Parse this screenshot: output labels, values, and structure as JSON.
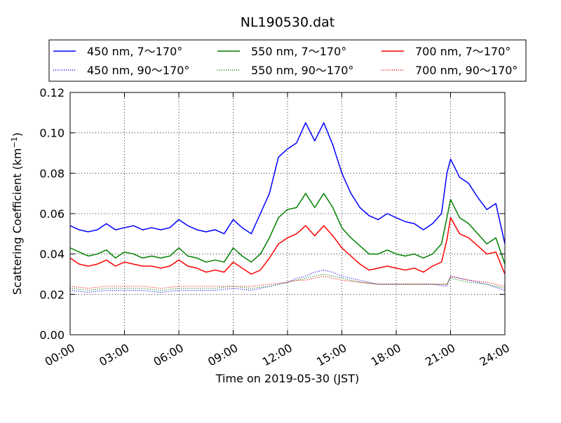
{
  "chart_data": {
    "type": "line",
    "title": "NL190530.dat",
    "xlabel": "Time on 2019-05-30 (JST)",
    "ylabel_main": "Scattering Coefficient (km",
    "ylabel_sup": "−1",
    "ylabel_close": ")",
    "xlim": [
      0,
      24
    ],
    "ylim": [
      0,
      0.12
    ],
    "grid": true,
    "legend_position": "top",
    "x_ticks": [
      {
        "value": 0,
        "label": "00:00"
      },
      {
        "value": 3,
        "label": "03:00"
      },
      {
        "value": 6,
        "label": "06:00"
      },
      {
        "value": 9,
        "label": "09:00"
      },
      {
        "value": 12,
        "label": "12:00"
      },
      {
        "value": 15,
        "label": "15:00"
      },
      {
        "value": 18,
        "label": "18:00"
      },
      {
        "value": 21,
        "label": "21:00"
      },
      {
        "value": 24,
        "label": "24:00"
      }
    ],
    "y_ticks": [
      {
        "value": 0.0,
        "label": "0.00"
      },
      {
        "value": 0.02,
        "label": "0.02"
      },
      {
        "value": 0.04,
        "label": "0.04"
      },
      {
        "value": 0.06,
        "label": "0.06"
      },
      {
        "value": 0.08,
        "label": "0.08"
      },
      {
        "value": 0.1,
        "label": "0.10"
      },
      {
        "value": 0.12,
        "label": "0.12"
      }
    ],
    "series": [
      {
        "name": "450 nm, 7～170°",
        "color": "#0000ff",
        "style": "solid",
        "x": [
          0,
          0.5,
          1,
          1.5,
          2,
          2.5,
          3,
          3.5,
          4,
          4.5,
          5,
          5.5,
          6,
          6.5,
          7,
          7.5,
          8,
          8.5,
          9,
          9.5,
          10,
          10.5,
          11,
          11.5,
          12,
          12.5,
          13,
          13.5,
          14,
          14.5,
          15,
          15.5,
          16,
          16.5,
          17,
          17.5,
          18,
          18.5,
          19,
          19.5,
          20,
          20.5,
          20.8,
          21,
          21.5,
          22,
          22.5,
          23,
          23.5,
          24
        ],
        "y": [
          0.054,
          0.052,
          0.051,
          0.052,
          0.055,
          0.052,
          0.053,
          0.054,
          0.052,
          0.053,
          0.052,
          0.053,
          0.057,
          0.054,
          0.052,
          0.051,
          0.052,
          0.05,
          0.057,
          0.053,
          0.05,
          0.06,
          0.07,
          0.088,
          0.092,
          0.095,
          0.105,
          0.096,
          0.105,
          0.094,
          0.08,
          0.07,
          0.063,
          0.059,
          0.057,
          0.06,
          0.058,
          0.056,
          0.055,
          0.052,
          0.055,
          0.06,
          0.08,
          0.087,
          0.078,
          0.075,
          0.068,
          0.062,
          0.065,
          0.045
        ]
      },
      {
        "name": "550 nm, 7～170°",
        "color": "#008000",
        "style": "solid",
        "x": [
          0,
          0.5,
          1,
          1.5,
          2,
          2.5,
          3,
          3.5,
          4,
          4.5,
          5,
          5.5,
          6,
          6.5,
          7,
          7.5,
          8,
          8.5,
          9,
          9.5,
          10,
          10.5,
          11,
          11.5,
          12,
          12.5,
          13,
          13.5,
          14,
          14.5,
          15,
          15.5,
          16,
          16.5,
          17,
          17.5,
          18,
          18.5,
          19,
          19.5,
          20,
          20.5,
          20.8,
          21,
          21.5,
          22,
          22.5,
          23,
          23.5,
          24
        ],
        "y": [
          0.043,
          0.041,
          0.039,
          0.04,
          0.042,
          0.038,
          0.041,
          0.04,
          0.038,
          0.039,
          0.038,
          0.039,
          0.043,
          0.039,
          0.038,
          0.036,
          0.037,
          0.036,
          0.043,
          0.039,
          0.036,
          0.04,
          0.048,
          0.058,
          0.062,
          0.063,
          0.07,
          0.063,
          0.07,
          0.063,
          0.053,
          0.048,
          0.044,
          0.04,
          0.04,
          0.042,
          0.04,
          0.039,
          0.04,
          0.038,
          0.04,
          0.045,
          0.058,
          0.067,
          0.058,
          0.055,
          0.05,
          0.045,
          0.048,
          0.035
        ]
      },
      {
        "name": "700 nm, 7～170°",
        "color": "#ff0000",
        "style": "solid",
        "x": [
          0,
          0.5,
          1,
          1.5,
          2,
          2.5,
          3,
          3.5,
          4,
          4.5,
          5,
          5.5,
          6,
          6.5,
          7,
          7.5,
          8,
          8.5,
          9,
          9.5,
          10,
          10.5,
          11,
          11.5,
          12,
          12.5,
          13,
          13.5,
          14,
          14.5,
          15,
          15.5,
          16,
          16.5,
          17,
          17.5,
          18,
          18.5,
          19,
          19.5,
          20,
          20.5,
          20.8,
          21,
          21.5,
          22,
          22.5,
          23,
          23.5,
          24
        ],
        "y": [
          0.038,
          0.035,
          0.034,
          0.035,
          0.037,
          0.034,
          0.036,
          0.035,
          0.034,
          0.034,
          0.033,
          0.034,
          0.037,
          0.034,
          0.033,
          0.031,
          0.032,
          0.031,
          0.036,
          0.033,
          0.03,
          0.032,
          0.038,
          0.045,
          0.048,
          0.05,
          0.054,
          0.049,
          0.054,
          0.049,
          0.043,
          0.039,
          0.035,
          0.032,
          0.033,
          0.034,
          0.033,
          0.032,
          0.033,
          0.031,
          0.034,
          0.036,
          0.047,
          0.058,
          0.05,
          0.048,
          0.044,
          0.04,
          0.041,
          0.03
        ]
      },
      {
        "name": "450 nm, 90～170°",
        "color": "#0000ff",
        "style": "dotted",
        "x": [
          0,
          1,
          2,
          3,
          4,
          5,
          6,
          7,
          8,
          9,
          10,
          11,
          12,
          12.5,
          13,
          13.5,
          14,
          14.5,
          15,
          16,
          17,
          18,
          19,
          20,
          20.8,
          21,
          22,
          23,
          24
        ],
        "y": [
          0.022,
          0.021,
          0.022,
          0.022,
          0.022,
          0.021,
          0.022,
          0.022,
          0.022,
          0.023,
          0.022,
          0.024,
          0.026,
          0.028,
          0.029,
          0.031,
          0.032,
          0.031,
          0.029,
          0.027,
          0.025,
          0.025,
          0.025,
          0.025,
          0.024,
          0.029,
          0.027,
          0.025,
          0.022
        ]
      },
      {
        "name": "550 nm, 90～170°",
        "color": "#008000",
        "style": "dotted",
        "x": [
          0,
          1,
          2,
          3,
          4,
          5,
          6,
          7,
          8,
          9,
          10,
          11,
          12,
          12.5,
          13,
          13.5,
          14,
          14.5,
          15,
          16,
          17,
          18,
          19,
          20,
          20.8,
          21,
          22,
          23,
          24
        ],
        "y": [
          0.023,
          0.022,
          0.023,
          0.023,
          0.023,
          0.022,
          0.023,
          0.023,
          0.023,
          0.024,
          0.023,
          0.024,
          0.026,
          0.027,
          0.028,
          0.029,
          0.03,
          0.029,
          0.028,
          0.026,
          0.025,
          0.025,
          0.025,
          0.025,
          0.025,
          0.028,
          0.026,
          0.025,
          0.023
        ]
      },
      {
        "name": "700 nm, 90～170°",
        "color": "#ff0000",
        "style": "dotted",
        "x": [
          0,
          1,
          2,
          3,
          4,
          5,
          6,
          7,
          8,
          9,
          10,
          11,
          12,
          12.5,
          13,
          13.5,
          14,
          14.5,
          15,
          16,
          17,
          18,
          19,
          20,
          20.8,
          21,
          22,
          23,
          24
        ],
        "y": [
          0.024,
          0.023,
          0.024,
          0.024,
          0.024,
          0.023,
          0.024,
          0.024,
          0.024,
          0.024,
          0.024,
          0.025,
          0.026,
          0.027,
          0.027,
          0.028,
          0.029,
          0.028,
          0.027,
          0.026,
          0.025,
          0.025,
          0.025,
          0.025,
          0.025,
          0.029,
          0.027,
          0.026,
          0.024
        ]
      }
    ]
  }
}
